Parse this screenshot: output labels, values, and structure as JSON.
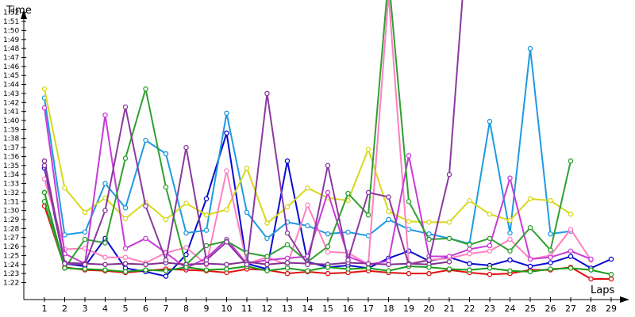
{
  "chart_data": {
    "type": "line",
    "title": "",
    "xlabel": "Laps",
    "ylabel": "Time",
    "y_unit_note": "lap time in seconds, ticks printed as m:ss",
    "xlim": [
      1,
      29
    ],
    "ylim": [
      82,
      113
    ],
    "grid": false,
    "legend": "none",
    "y_ticks": [
      82,
      83,
      84,
      85,
      86,
      87,
      88,
      89,
      90,
      91,
      92,
      93,
      94,
      95,
      96,
      97,
      98,
      99,
      100,
      101,
      102,
      103,
      104,
      105,
      106,
      107,
      108,
      109,
      110,
      111,
      112
    ],
    "y_tick_labels": [
      "1:22",
      "1:23",
      "1:24",
      "1:25",
      "1:26",
      "1:27",
      "1:28",
      "1:29",
      "1:30",
      "1:31",
      "1:32",
      "1:33",
      "1:34",
      "1:35",
      "1:36",
      "1:37",
      "1:38",
      "1:39",
      "1:40",
      "1:41",
      "1:42",
      "1:43",
      "1:44",
      "1:45",
      "1:46",
      "1:47",
      "1:48",
      "1:49",
      "1:50",
      "1:51",
      "1:52"
    ],
    "x_ticks": [
      1,
      2,
      3,
      4,
      5,
      6,
      7,
      8,
      9,
      10,
      11,
      12,
      13,
      14,
      15,
      16,
      17,
      18,
      19,
      20,
      21,
      22,
      23,
      24,
      25,
      26,
      27,
      28,
      29
    ],
    "x_tick_labels": [
      "1",
      "2",
      "3",
      "4",
      "5",
      "6",
      "7",
      "8",
      "9",
      "10",
      "11",
      "12",
      "13",
      "14",
      "15",
      "16",
      "17",
      "18",
      "19",
      "20",
      "21",
      "22",
      "23",
      "24",
      "25",
      "26",
      "27",
      "28",
      "29"
    ],
    "series": [
      {
        "color": "#e01010",
        "values": [
          90.5,
          83.7,
          83.4,
          83.3,
          83.1,
          83.3,
          83.5,
          83.4,
          83.3,
          83.1,
          83.5,
          83.4,
          83.0,
          83.2,
          83.0,
          83.1,
          83.3,
          83.1,
          83.0,
          83.0,
          83.4,
          83.1,
          82.9,
          83.0,
          83.4,
          83.4,
          83.7,
          82.4,
          82.4
        ]
      },
      {
        "color": "#0a0ad0",
        "values": [
          94.7,
          84.1,
          83.8,
          86.9,
          83.6,
          83.2,
          82.7,
          85.1,
          91.3,
          98.6,
          84.1,
          83.5,
          95.5,
          84.3,
          83.7,
          83.9,
          83.6,
          84.7,
          85.5,
          84.4,
          84.8,
          84.1,
          83.9,
          84.5,
          83.8,
          84.2,
          84.9,
          83.6,
          84.6
        ]
      },
      {
        "color": "#1f9ae0",
        "values": [
          102.5,
          87.3,
          87.6,
          93.0,
          90.3,
          97.8,
          96.3,
          87.5,
          87.8,
          100.8,
          89.8,
          86.9,
          88.7,
          88.3,
          87.4,
          87.6,
          87.2,
          89.0,
          87.9,
          87.4,
          86.9,
          86.3,
          99.9,
          87.5,
          108.0,
          87.4,
          87.7
        ]
      },
      {
        "color": "#d8d81a",
        "values": [
          103.5,
          92.5,
          89.8,
          91.4,
          89.1,
          90.9,
          89.0,
          90.8,
          89.5,
          90.1,
          94.7,
          88.6,
          90.4,
          92.5,
          91.4,
          91.1,
          96.8,
          89.9,
          88.8,
          88.7,
          88.7,
          91.1,
          89.6,
          88.9,
          91.3,
          91.1,
          89.6
        ]
      },
      {
        "color": "#ff80c0",
        "values": [
          93.5,
          85.7,
          85.8,
          84.8,
          84.8,
          84.2,
          85.3,
          85.9,
          84.0,
          94.4,
          84.1,
          84.8,
          84.0,
          90.6,
          85.4,
          85.3,
          84.0,
          114.0,
          84.1,
          84.5,
          84.7,
          85.2,
          85.5,
          86.8,
          84.6,
          85.0,
          87.9,
          84.5
        ]
      },
      {
        "color": "#c83cd8",
        "values": [
          101.4,
          85.2,
          84.1,
          100.6,
          85.8,
          86.9,
          85.3,
          83.6,
          84.7,
          86.8,
          84.1,
          84.5,
          84.7,
          84.9,
          92.0,
          84.9,
          84.0,
          84.4,
          96.1,
          84.9,
          84.9,
          85.7,
          86.1,
          93.6,
          84.6,
          84.8,
          85.5,
          84.6
        ]
      },
      {
        "color": "#30a030",
        "values": [
          91.0,
          83.6,
          86.8,
          86.4,
          95.8,
          103.5,
          92.6,
          84.0,
          86.1,
          86.6,
          85.3,
          84.9,
          86.2,
          84.3,
          86.0,
          91.9,
          89.5,
          116.0,
          91.0,
          86.8,
          86.9,
          86.2,
          86.9,
          85.5,
          88.1,
          85.6,
          95.5
        ]
      },
      {
        "color": "#803090",
        "values": [
          95.5,
          84.2,
          84.1,
          84.0,
          84.1,
          84.0,
          84.2,
          84.0,
          84.1,
          84.0,
          84.3,
          84.0,
          84.2,
          84.1,
          84.0,
          84.2,
          84.1,
          84.0,
          84.1,
          84.0,
          84.3
        ]
      },
      {
        "color": "#1a9a1a",
        "values": [
          92.0,
          83.6,
          83.5,
          83.4,
          83.2,
          83.4,
          83.3,
          83.7,
          83.4,
          83.5,
          83.8,
          83.3,
          83.6,
          83.3,
          83.7,
          83.5,
          83.6,
          83.3,
          83.8,
          83.7,
          83.5,
          83.4,
          83.6,
          83.3,
          83.2,
          83.5,
          83.6,
          83.4,
          82.9
        ]
      },
      {
        "color": "#8a3aa0",
        "values": [
          95.0,
          84.1,
          84.0,
          90.0,
          101.5,
          90.5,
          84.5,
          97.0,
          84.5,
          86.5,
          84.0,
          103.0,
          87.5,
          84.0,
          95.0,
          84.5,
          92.0,
          91.5,
          84.0,
          84.5,
          94.0,
          124.0
        ]
      }
    ],
    "spikes_above_axis": [
      {
        "color": "#803090",
        "from_lap": 1,
        "to_lap": 2,
        "note": "lines run off the top of the plot"
      }
    ]
  }
}
